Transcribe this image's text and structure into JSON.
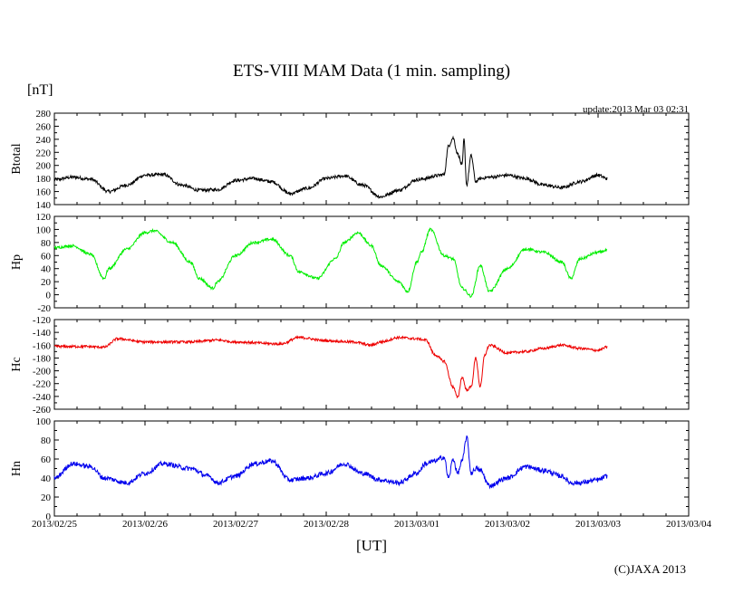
{
  "chart_data": {
    "type": "line",
    "title": "ETS-VIII MAM Data (1 min. sampling)",
    "unit_label": "[nT]",
    "update_label": "update:2013 Mar 03 02:31",
    "xlabel": "[UT]",
    "copyright": "(C)JAXA 2013",
    "x_unit": "days since 2013/02/25 00:00 UT",
    "xlim": [
      0,
      7
    ],
    "x_tick_labels": [
      "2013/02/25",
      "2013/02/26",
      "2013/02/27",
      "2013/02/28",
      "2013/03/01",
      "2013/03/02",
      "2013/03/03",
      "2013/03/04"
    ],
    "panels": [
      {
        "name": "Btotal",
        "ylabel": "Btotal",
        "color": "#000000",
        "ylim": [
          140,
          280
        ],
        "yticks": [
          140,
          160,
          180,
          200,
          220,
          240,
          260,
          280
        ],
        "x": [
          0,
          0.2,
          0.4,
          0.6,
          0.8,
          1.0,
          1.2,
          1.4,
          1.6,
          1.8,
          2.0,
          2.2,
          2.4,
          2.6,
          2.8,
          3.0,
          3.2,
          3.4,
          3.6,
          3.8,
          4.0,
          4.1,
          4.2,
          4.3,
          4.35,
          4.4,
          4.45,
          4.5,
          4.52,
          4.55,
          4.6,
          4.65,
          4.7,
          4.8,
          5.0,
          5.2,
          5.4,
          5.6,
          5.8,
          6.0,
          6.1
        ],
        "values": [
          178,
          182,
          179,
          160,
          170,
          185,
          186,
          170,
          162,
          163,
          177,
          180,
          175,
          157,
          165,
          180,
          184,
          170,
          152,
          162,
          178,
          180,
          184,
          186,
          230,
          242,
          218,
          200,
          240,
          170,
          215,
          175,
          180,
          182,
          185,
          180,
          170,
          166,
          175,
          185,
          180
        ],
        "noise": 2.5
      },
      {
        "name": "Hp",
        "ylabel": "Hp",
        "color": "#00ee00",
        "ylim": [
          -20,
          120
        ],
        "yticks": [
          -20,
          0,
          20,
          40,
          60,
          80,
          100,
          120
        ],
        "x": [
          0,
          0.2,
          0.4,
          0.55,
          0.6,
          0.8,
          1.0,
          1.1,
          1.3,
          1.5,
          1.6,
          1.75,
          1.8,
          2.0,
          2.2,
          2.4,
          2.6,
          2.7,
          2.9,
          3.1,
          3.2,
          3.35,
          3.5,
          3.6,
          3.8,
          3.9,
          4.0,
          4.05,
          4.15,
          4.3,
          4.4,
          4.5,
          4.6,
          4.7,
          4.8,
          5.0,
          5.2,
          5.4,
          5.6,
          5.7,
          5.8,
          6.0,
          6.1
        ],
        "values": [
          72,
          75,
          62,
          25,
          40,
          70,
          95,
          98,
          80,
          50,
          25,
          10,
          20,
          60,
          80,
          85,
          60,
          35,
          25,
          55,
          80,
          95,
          75,
          45,
          20,
          5,
          50,
          65,
          100,
          60,
          55,
          10,
          -2,
          45,
          5,
          40,
          70,
          65,
          50,
          25,
          55,
          65,
          68
        ],
        "noise": 2.0
      },
      {
        "name": "Hc",
        "ylabel": "Hc",
        "color": "#ee0000",
        "ylim": [
          -260,
          -120
        ],
        "yticks": [
          -260,
          -240,
          -220,
          -200,
          -180,
          -160,
          -140,
          -120
        ],
        "x": [
          0,
          0.3,
          0.55,
          0.7,
          1.0,
          1.5,
          1.8,
          2.0,
          2.5,
          2.7,
          3.0,
          3.3,
          3.5,
          3.6,
          3.8,
          4.0,
          4.1,
          4.2,
          4.3,
          4.4,
          4.45,
          4.5,
          4.55,
          4.6,
          4.65,
          4.7,
          4.75,
          4.8,
          5.0,
          5.2,
          5.4,
          5.6,
          5.8,
          6.0,
          6.1
        ],
        "values": [
          -162,
          -162,
          -163,
          -150,
          -155,
          -155,
          -152,
          -155,
          -158,
          -148,
          -153,
          -155,
          -160,
          -155,
          -148,
          -150,
          -152,
          -175,
          -185,
          -225,
          -242,
          -210,
          -230,
          -225,
          -180,
          -225,
          -175,
          -160,
          -172,
          -170,
          -165,
          -160,
          -165,
          -168,
          -163
        ],
        "noise": 2.0
      },
      {
        "name": "Hn",
        "ylabel": "Hn",
        "color": "#0000ee",
        "ylim": [
          0,
          100
        ],
        "yticks": [
          0,
          20,
          40,
          60,
          80,
          100
        ],
        "x": [
          0,
          0.2,
          0.4,
          0.55,
          0.8,
          1.0,
          1.2,
          1.5,
          1.7,
          1.8,
          2.0,
          2.2,
          2.4,
          2.6,
          2.8,
          3.0,
          3.2,
          3.4,
          3.6,
          3.8,
          4.0,
          4.1,
          4.2,
          4.3,
          4.35,
          4.4,
          4.45,
          4.5,
          4.55,
          4.6,
          4.65,
          4.7,
          4.8,
          5.0,
          5.2,
          5.4,
          5.6,
          5.7,
          5.8,
          6.0,
          6.1
        ],
        "values": [
          40,
          55,
          52,
          40,
          35,
          45,
          55,
          50,
          42,
          35,
          42,
          55,
          58,
          38,
          40,
          45,
          55,
          45,
          38,
          35,
          45,
          55,
          58,
          62,
          40,
          60,
          45,
          58,
          83,
          45,
          50,
          48,
          32,
          40,
          52,
          48,
          42,
          35,
          35,
          38,
          42
        ],
        "noise": 2.5
      }
    ]
  }
}
